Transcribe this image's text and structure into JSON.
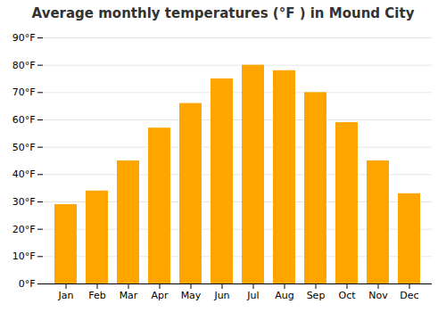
{
  "chart_data": {
    "type": "bar",
    "title": "Average monthly temperatures (°F ) in Mound City",
    "categories": [
      "Jan",
      "Feb",
      "Mar",
      "Apr",
      "May",
      "Jun",
      "Jul",
      "Aug",
      "Sep",
      "Oct",
      "Nov",
      "Dec"
    ],
    "values": [
      29,
      34,
      45,
      57,
      66,
      75,
      80,
      78,
      70,
      59,
      45,
      33
    ],
    "color": "#FFA500",
    "ylim": [
      0,
      90
    ],
    "yticks": [
      {
        "value": 0,
        "label": "0°F"
      },
      {
        "value": 10,
        "label": "10°F"
      },
      {
        "value": 20,
        "label": "20°F"
      },
      {
        "value": 30,
        "label": "30°F"
      },
      {
        "value": 40,
        "label": "40°F"
      },
      {
        "value": 50,
        "label": "50°F"
      },
      {
        "value": 60,
        "label": "60°F"
      },
      {
        "value": 70,
        "label": "70°F"
      },
      {
        "value": 80,
        "label": "80°F"
      },
      {
        "value": 90,
        "label": "90°F"
      }
    ],
    "grid": true
  }
}
